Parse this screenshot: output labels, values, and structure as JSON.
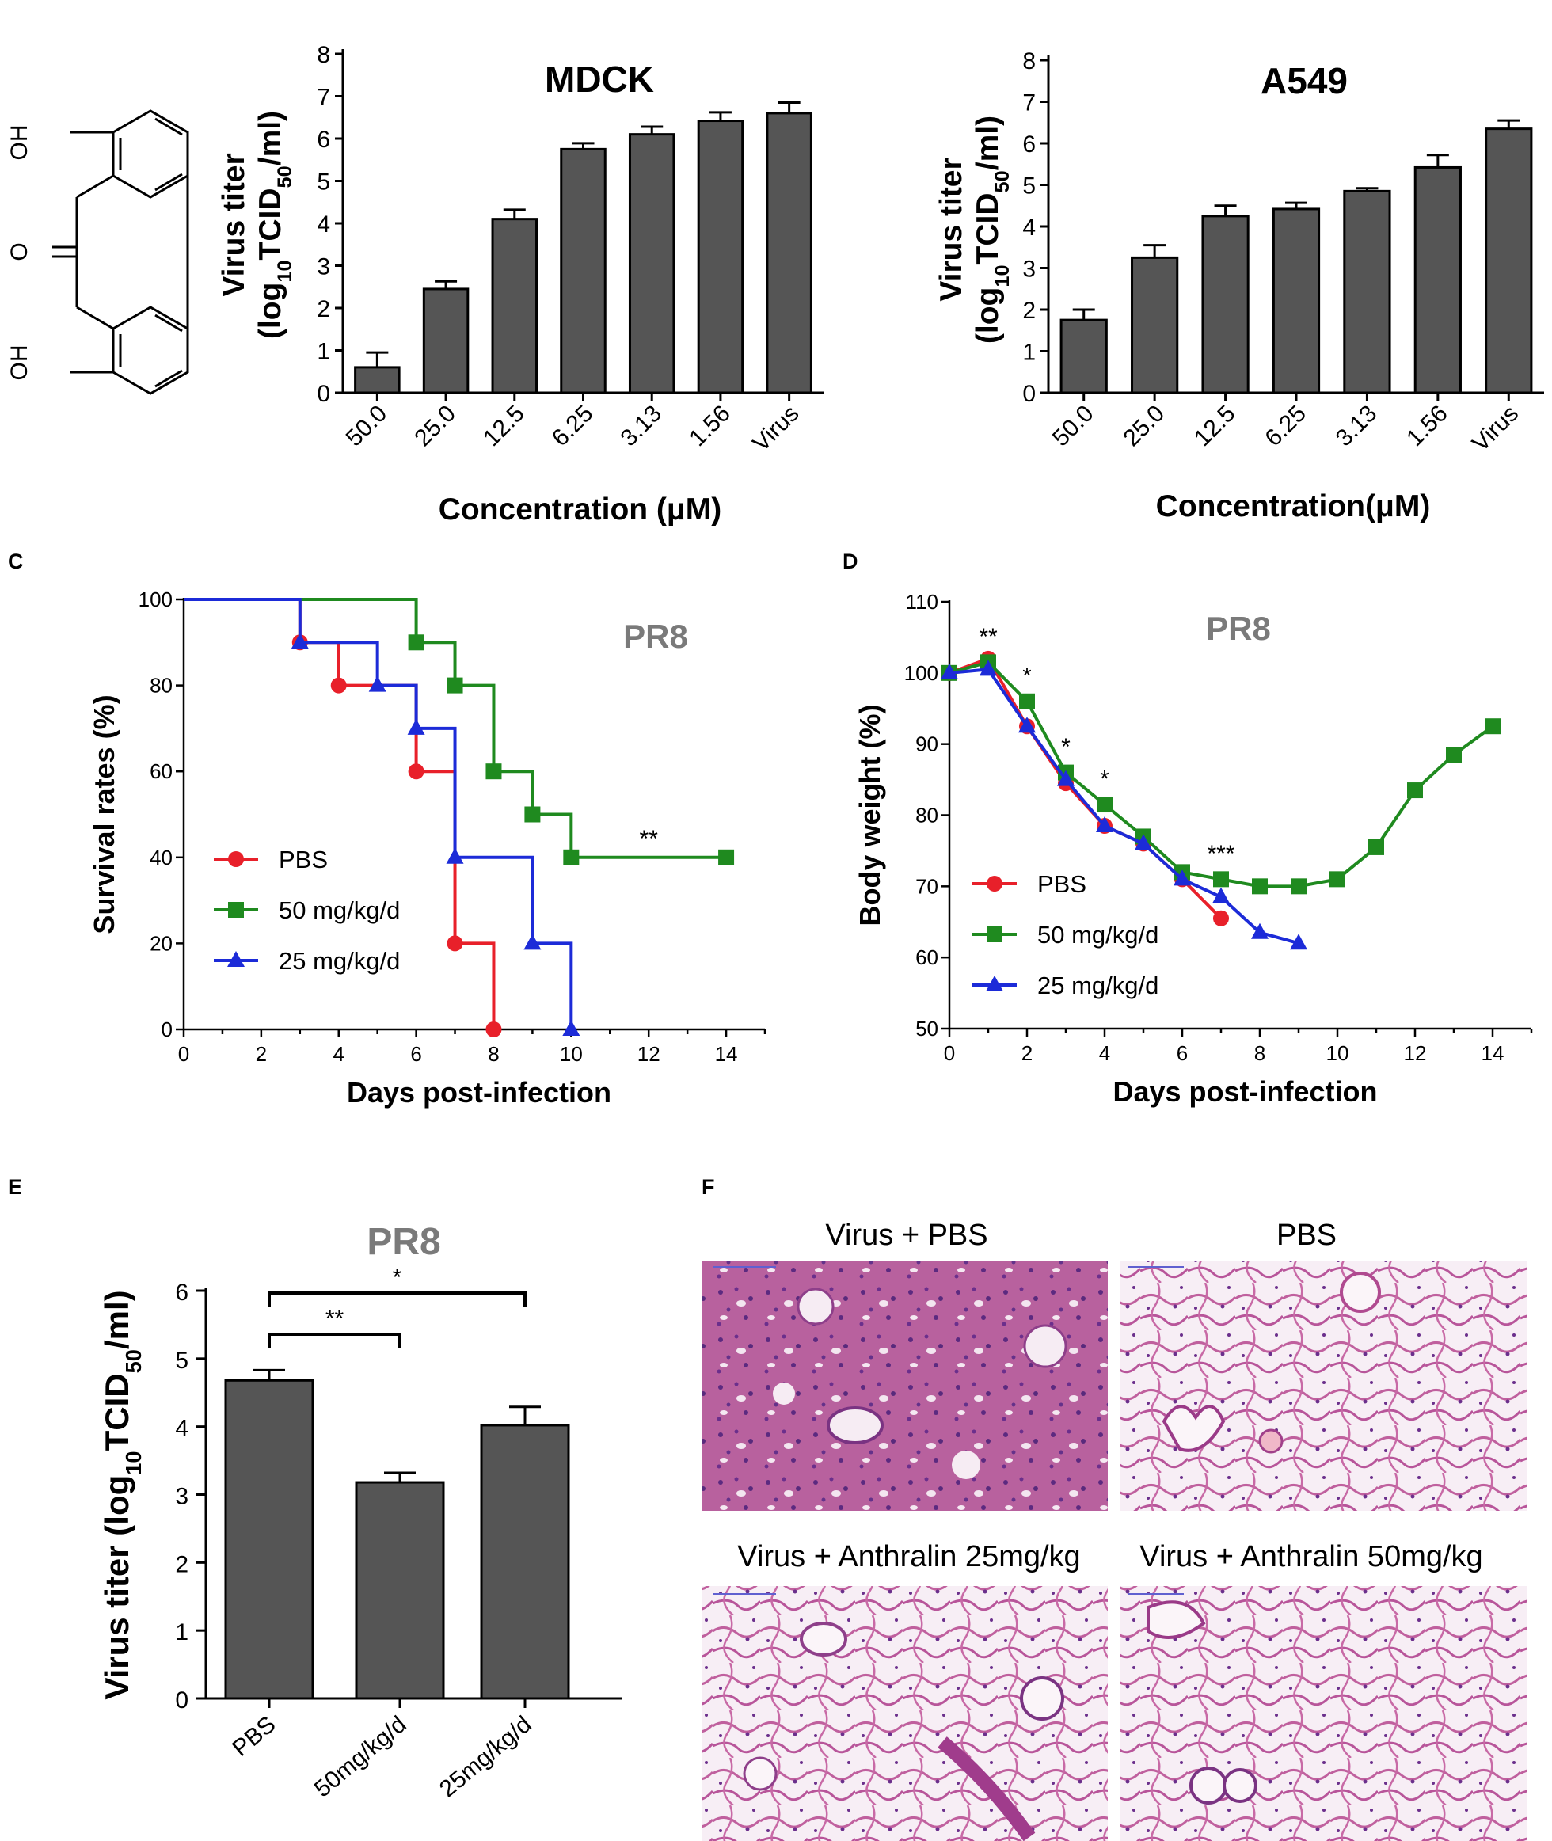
{
  "panels": {
    "C": "C",
    "D": "D",
    "E": "E",
    "F": "F"
  },
  "molecule": {
    "labels": [
      "OH",
      "O",
      "OH"
    ]
  },
  "chart_data": [
    {
      "id": "mdck",
      "type": "bar",
      "title": "MDCK",
      "xlabel": "Concentration (μM)",
      "ylabel_main": "Virus titer",
      "ylabel_unit": "(log10TCID50/ml)",
      "categories": [
        "50.0",
        "25.0",
        "12.5",
        "6.25",
        "3.13",
        "1.56",
        "Virus"
      ],
      "values": [
        0.6,
        2.45,
        4.1,
        5.75,
        6.1,
        6.42,
        6.6
      ],
      "errors": [
        0.35,
        0.18,
        0.22,
        0.14,
        0.18,
        0.2,
        0.25
      ],
      "ylim": [
        0,
        8
      ],
      "yticks": [
        0,
        1,
        2,
        3,
        4,
        5,
        6,
        7,
        8
      ],
      "bar_color": "#555555"
    },
    {
      "id": "a549",
      "type": "bar",
      "title": "A549",
      "xlabel": "Concentration(μM)",
      "ylabel_main": "Virus titer",
      "ylabel_unit": "(log10TCID50/ml)",
      "categories": [
        "50.0",
        "25.0",
        "12.5",
        "6.25",
        "3.13",
        "1.56",
        "Virus"
      ],
      "values": [
        1.75,
        3.25,
        4.25,
        4.42,
        4.85,
        5.42,
        6.35
      ],
      "errors": [
        0.25,
        0.3,
        0.25,
        0.15,
        0.07,
        0.3,
        0.2
      ],
      "ylim": [
        0,
        8
      ],
      "yticks": [
        0,
        1,
        2,
        3,
        4,
        5,
        6,
        7,
        8
      ],
      "bar_color": "#555555"
    },
    {
      "id": "survival",
      "type": "line",
      "panel": "C",
      "title": "PR8",
      "xlabel": "Days post-infection",
      "ylabel": "Survival rates (%)",
      "xlim": [
        0,
        15
      ],
      "ylim": [
        0,
        100
      ],
      "xticks": [
        0,
        2,
        4,
        6,
        8,
        10,
        12,
        14
      ],
      "yticks": [
        0,
        20,
        40,
        60,
        80,
        100
      ],
      "significance": "**",
      "series": [
        {
          "name": "PBS",
          "color": "#e8202a",
          "marker": "circle",
          "steps": [
            [
              0,
              100
            ],
            [
              3,
              100
            ],
            [
              3,
              90
            ],
            [
              4,
              90
            ],
            [
              4,
              80
            ],
            [
              6,
              80
            ],
            [
              6,
              60
            ],
            [
              7,
              60
            ],
            [
              7,
              20
            ],
            [
              8,
              20
            ],
            [
              8,
              0
            ]
          ],
          "markers": [
            [
              3,
              90
            ],
            [
              4,
              80
            ],
            [
              6,
              60
            ],
            [
              7,
              20
            ],
            [
              8,
              0
            ]
          ]
        },
        {
          "name": "50 mg/kg/d",
          "color": "#1f8a1f",
          "marker": "square",
          "steps": [
            [
              0,
              100
            ],
            [
              6,
              100
            ],
            [
              6,
              90
            ],
            [
              7,
              90
            ],
            [
              7,
              80
            ],
            [
              8,
              80
            ],
            [
              8,
              60
            ],
            [
              9,
              60
            ],
            [
              9,
              50
            ],
            [
              10,
              50
            ],
            [
              10,
              40
            ],
            [
              14,
              40
            ]
          ],
          "markers": [
            [
              6,
              90
            ],
            [
              7,
              80
            ],
            [
              8,
              60
            ],
            [
              9,
              50
            ],
            [
              10,
              40
            ],
            [
              14,
              40
            ]
          ]
        },
        {
          "name": "25 mg/kg/d",
          "color": "#1c2bd8",
          "marker": "triangle",
          "steps": [
            [
              0,
              100
            ],
            [
              3,
              100
            ],
            [
              3,
              90
            ],
            [
              5,
              90
            ],
            [
              5,
              80
            ],
            [
              6,
              80
            ],
            [
              6,
              70
            ],
            [
              7,
              70
            ],
            [
              7,
              40
            ],
            [
              9,
              40
            ],
            [
              9,
              20
            ],
            [
              10,
              20
            ],
            [
              10,
              0
            ]
          ],
          "markers": [
            [
              3,
              90
            ],
            [
              5,
              80
            ],
            [
              6,
              70
            ],
            [
              7,
              40
            ],
            [
              9,
              20
            ],
            [
              10,
              0
            ]
          ]
        }
      ]
    },
    {
      "id": "bodyweight",
      "type": "line",
      "panel": "D",
      "title": "PR8",
      "xlabel": "Days post-infection",
      "ylabel": "Body weight (%)",
      "xlim": [
        0,
        15
      ],
      "ylim": [
        50,
        110
      ],
      "xticks": [
        0,
        2,
        4,
        6,
        8,
        10,
        12,
        14
      ],
      "yticks": [
        50,
        60,
        70,
        80,
        90,
        100,
        110
      ],
      "annotations": [
        {
          "x": 1,
          "y": 104,
          "text": "**"
        },
        {
          "x": 2,
          "y": 98.5,
          "text": "*"
        },
        {
          "x": 3,
          "y": 88.5,
          "text": "*"
        },
        {
          "x": 4,
          "y": 84,
          "text": "*"
        },
        {
          "x": 7,
          "y": 73.5,
          "text": "***"
        }
      ],
      "series": [
        {
          "name": "PBS",
          "color": "#e8202a",
          "marker": "circle",
          "x": [
            0,
            1,
            2,
            3,
            4,
            5,
            6,
            7
          ],
          "y": [
            100,
            102,
            92.5,
            84.5,
            78.5,
            76,
            71,
            65.5
          ]
        },
        {
          "name": "50 mg/kg/d",
          "color": "#1f8a1f",
          "marker": "square",
          "x": [
            0,
            1,
            2,
            3,
            4,
            5,
            6,
            7,
            8,
            9,
            10,
            11,
            12,
            13,
            14
          ],
          "y": [
            100,
            101.5,
            96,
            86,
            81.5,
            77,
            72,
            71,
            70,
            70,
            71,
            75.5,
            83.5,
            88.5,
            92.5
          ]
        },
        {
          "name": "25 mg/kg/d",
          "color": "#1c2bd8",
          "marker": "triangle",
          "x": [
            0,
            1,
            2,
            3,
            4,
            5,
            6,
            7,
            8,
            9
          ],
          "y": [
            100,
            100.5,
            92.5,
            85,
            78.5,
            76,
            71,
            68.5,
            63.5,
            62
          ]
        }
      ]
    },
    {
      "id": "lung-titer",
      "type": "bar",
      "panel": "E",
      "title": "PR8",
      "ylabel": "Virus titer (log10TCID50/ml)",
      "categories": [
        "PBS",
        "50mg/kg/d",
        "25mg/kg/d"
      ],
      "values": [
        4.68,
        3.18,
        4.02
      ],
      "errors": [
        0.15,
        0.14,
        0.27
      ],
      "ylim": [
        0,
        6
      ],
      "yticks": [
        0,
        1,
        2,
        3,
        4,
        5,
        6
      ],
      "bar_color": "#555555",
      "brackets": [
        {
          "from": "PBS",
          "to": "50mg/kg/d",
          "label": "**"
        },
        {
          "from": "PBS",
          "to": "25mg/kg/d",
          "label": "*"
        }
      ]
    }
  ],
  "histology": {
    "captions": [
      "Virus + PBS",
      "PBS",
      "Virus + Anthralin 25mg/kg",
      "Virus + Anthralin 50mg/kg"
    ]
  }
}
